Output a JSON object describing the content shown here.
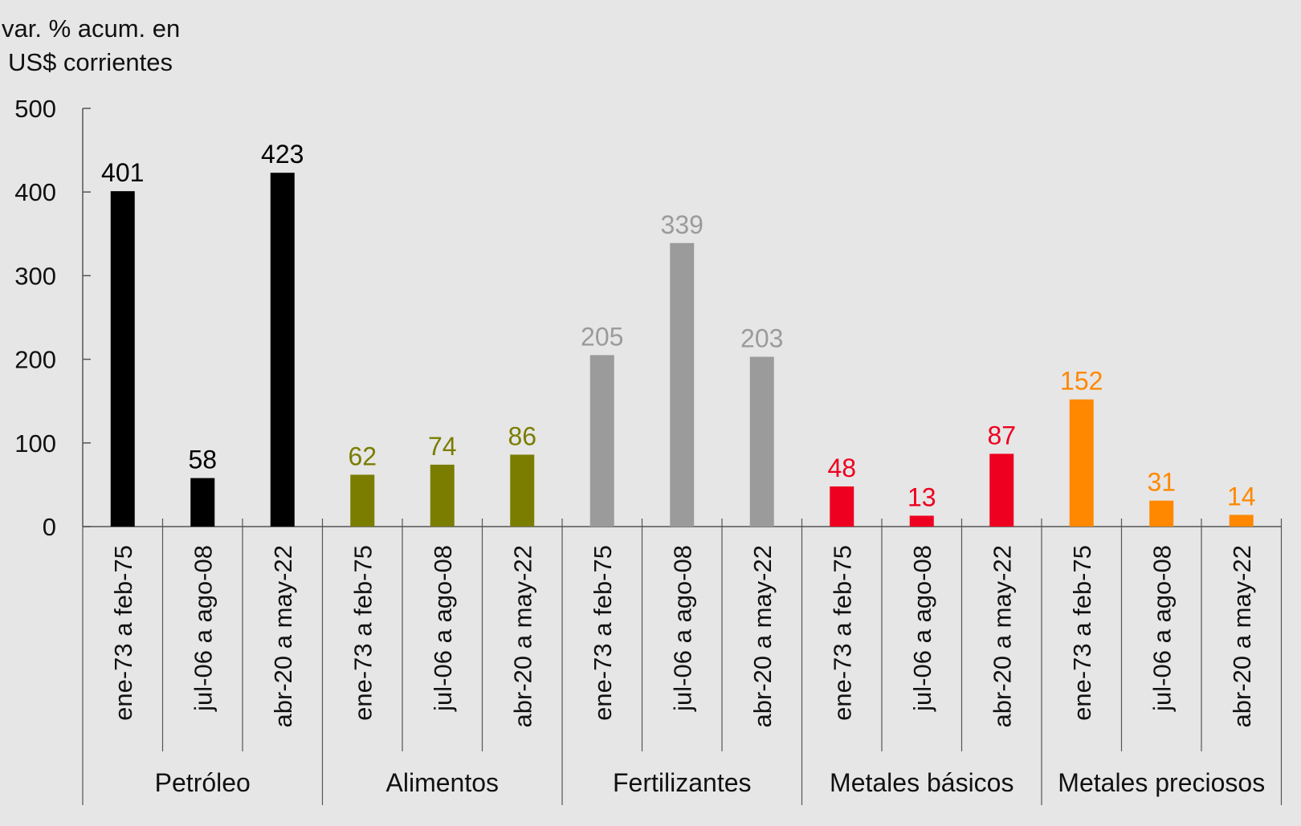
{
  "chart_data": {
    "type": "bar",
    "ylabel": "var. % acum. en US$ corrientes",
    "ylabel_lines": [
      "var. % acum. en",
      "US$ corrientes"
    ],
    "ylim": [
      0,
      500
    ],
    "yticks": [
      0,
      100,
      200,
      300,
      400,
      500
    ],
    "grid": false,
    "legend": "none",
    "groups": [
      {
        "name": "Petróleo",
        "color": "#000000",
        "categories": [
          "ene-73 a feb-75",
          "jul-06 a ago-08",
          "abr-20 a may-22"
        ],
        "values": [
          401,
          58,
          423
        ]
      },
      {
        "name": "Alimentos",
        "color": "#7a7d00",
        "categories": [
          "ene-73 a feb-75",
          "jul-06 a ago-08",
          "abr-20 a may-22"
        ],
        "values": [
          62,
          74,
          86
        ]
      },
      {
        "name": "Fertilizantes",
        "color": "#9b9b9b",
        "categories": [
          "ene-73 a feb-75",
          "jul-06 a ago-08",
          "abr-20 a may-22"
        ],
        "values": [
          205,
          339,
          203
        ]
      },
      {
        "name": "Metales básicos",
        "color": "#ee0020",
        "categories": [
          "ene-73 a feb-75",
          "jul-06 a ago-08",
          "abr-20 a may-22"
        ],
        "values": [
          48,
          13,
          87
        ]
      },
      {
        "name": "Metales preciosos",
        "color": "#ff8800",
        "categories": [
          "ene-73 a feb-75",
          "jul-06 a ago-08",
          "abr-20 a may-22"
        ],
        "values": [
          152,
          31,
          14
        ]
      }
    ]
  }
}
